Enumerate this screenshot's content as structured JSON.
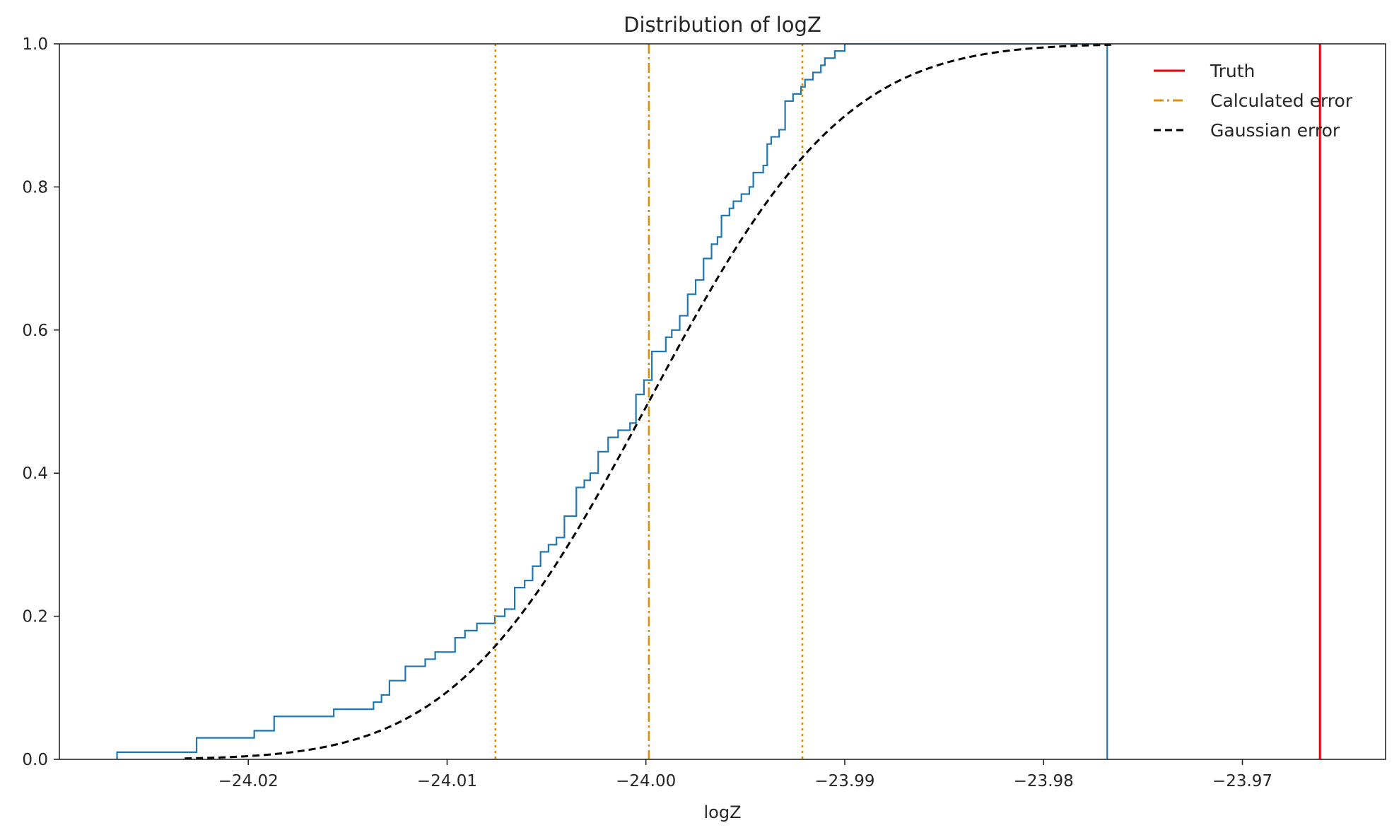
{
  "chart_data": {
    "type": "line",
    "title": "Distribution of logZ",
    "xlabel": "logZ",
    "ylabel": "",
    "xlim": [
      -24.0295,
      -23.9628
    ],
    "ylim": [
      0,
      1.0
    ],
    "x_ticks": [
      -24.02,
      -24.01,
      -24.0,
      -23.99,
      -23.98,
      -23.97
    ],
    "x_tick_labels": [
      "−24.02",
      "−24.01",
      "−24.00",
      "−23.99",
      "−23.98",
      "−23.97"
    ],
    "y_ticks": [
      0.0,
      0.2,
      0.4,
      0.6,
      0.8,
      1.0
    ],
    "y_tick_labels": [
      "0.0",
      "0.2",
      "0.4",
      "0.6",
      "0.8",
      "1.0"
    ],
    "grid": false,
    "legend_position": "top-right",
    "colors": {
      "ecdf": "#1f77b4",
      "truth": "#e8000b",
      "calculated": "#de8f05",
      "gaussian": "#000000",
      "axes": "#262626"
    },
    "series": [
      {
        "kind": "ecdf",
        "color": "#1f77b4",
        "x": [
          -24.0266,
          -24.0226,
          -24.0197,
          -24.0187,
          -24.0157,
          -24.0137,
          -24.0133,
          -24.0129,
          -24.0121,
          -24.0111,
          -24.0106,
          -24.0096,
          -24.0091,
          -24.0085,
          -24.0076,
          -24.0071,
          -24.0066,
          -24.0061,
          -24.0057,
          -24.0053,
          -24.0049,
          -24.0045,
          -24.0041,
          -24.0035,
          -24.0031,
          -24.0028,
          -24.0024,
          -24.0019,
          -24.0014,
          -24.0008,
          -24.0005,
          -24.0001,
          -23.9997,
          -23.999,
          -23.9987,
          -23.9983,
          -23.9979,
          -23.9975,
          -23.9971,
          -23.9967,
          -23.9964,
          -23.9962,
          -23.9958,
          -23.9956,
          -23.9952,
          -23.9948,
          -23.9946,
          -23.9941,
          -23.9939,
          -23.9937,
          -23.9933,
          -23.993,
          -23.9926,
          -23.9922,
          -23.992,
          -23.9916,
          -23.9912,
          -23.991,
          -23.9905,
          -23.99,
          -23.9895,
          -23.9888,
          -23.9883,
          -23.9881,
          -23.9876,
          -23.9866,
          -23.9844,
          -23.9827,
          -23.981,
          -23.9783,
          -23.9768
        ],
        "y": [
          0.01,
          0.03,
          0.04,
          0.06,
          0.07,
          0.08,
          0.09,
          0.11,
          0.13,
          0.14,
          0.15,
          0.17,
          0.18,
          0.19,
          0.2,
          0.21,
          0.24,
          0.25,
          0.27,
          0.29,
          0.3,
          0.31,
          0.34,
          0.38,
          0.39,
          0.4,
          0.43,
          0.45,
          0.46,
          0.47,
          0.51,
          0.53,
          0.57,
          0.59,
          0.6,
          0.62,
          0.65,
          0.67,
          0.7,
          0.72,
          0.73,
          0.76,
          0.77,
          0.78,
          0.79,
          0.8,
          0.82,
          0.83,
          0.86,
          0.87,
          0.88,
          0.92,
          0.93,
          0.94,
          0.95,
          0.96,
          0.97,
          0.98,
          0.99,
          1.0,
          1.0,
          1.0,
          1.0,
          1.0,
          1.0,
          1.0,
          1.0,
          1.0,
          1.0,
          1.0,
          1.0
        ],
        "end_x": -23.9768
      },
      {
        "name": "Truth",
        "kind": "vline",
        "x": -23.9661,
        "color": "#e8000b",
        "style": "solid"
      },
      {
        "name": "Calculated error",
        "kind": "vline",
        "x": -23.99985,
        "color": "#de8f05",
        "style": "dashdot"
      },
      {
        "kind": "vline",
        "x": -24.00757,
        "color": "#de8f05",
        "style": "dotted"
      },
      {
        "kind": "vline",
        "x": -23.99213,
        "color": "#de8f05",
        "style": "dotted"
      },
      {
        "name": "Gaussian error",
        "kind": "gaussian_cdf",
        "mean": -23.99985,
        "sigma": 0.00772,
        "x_range": [
          -24.0232,
          -23.9766
        ],
        "color": "#000000",
        "style": "dashed"
      }
    ]
  }
}
